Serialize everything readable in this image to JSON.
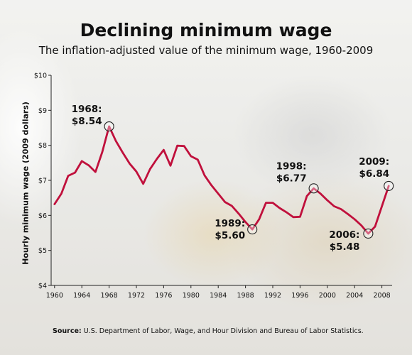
{
  "chart_data": {
    "type": "line",
    "title": "Declining minimum wage",
    "subtitle": "The inflation-adjusted value of the minimum wage, 1960-2009",
    "ylabel": "Hourly minimum wage (2009 dollars)",
    "xlabel": "",
    "xlim": [
      1959.5,
      2009.5
    ],
    "ylim": [
      4,
      10
    ],
    "x_ticks": [
      1960,
      1964,
      1968,
      1972,
      1976,
      1980,
      1984,
      1988,
      1992,
      1996,
      2000,
      2004,
      2008
    ],
    "x_tick_labels": [
      "1960",
      "1964",
      "1968",
      "1972",
      "1976",
      "1980",
      "1984",
      "1988",
      "1992",
      "1996",
      "2000",
      "2004",
      "2008"
    ],
    "y_ticks": [
      4,
      5,
      6,
      7,
      8,
      9,
      10
    ],
    "y_tick_labels": [
      "$4",
      "$5",
      "$6",
      "$7",
      "$8",
      "$9",
      "$10"
    ],
    "grid": false,
    "line_color": "#c0103c",
    "series": [
      {
        "name": "",
        "x": [
          1960,
          1961,
          1962,
          1963,
          1964,
          1965,
          1966,
          1967,
          1968,
          1969,
          1970,
          1971,
          1972,
          1973,
          1974,
          1975,
          1976,
          1977,
          1978,
          1979,
          1980,
          1981,
          1982,
          1983,
          1984,
          1985,
          1986,
          1987,
          1988,
          1989,
          1990,
          1991,
          1992,
          1993,
          1994,
          1995,
          1996,
          1997,
          1998,
          1999,
          2000,
          2001,
          2002,
          2003,
          2004,
          2005,
          2006,
          2007,
          2008,
          2009
        ],
        "y": [
          6.32,
          6.62,
          7.13,
          7.22,
          7.55,
          7.43,
          7.24,
          7.81,
          8.54,
          8.12,
          7.79,
          7.48,
          7.25,
          6.9,
          7.32,
          7.61,
          7.87,
          7.42,
          7.99,
          7.98,
          7.69,
          7.59,
          7.14,
          6.86,
          6.62,
          6.38,
          6.27,
          6.05,
          5.81,
          5.6,
          5.89,
          6.36,
          6.36,
          6.21,
          6.09,
          5.95,
          5.96,
          6.55,
          6.77,
          6.62,
          6.43,
          6.26,
          6.18,
          6.04,
          5.89,
          5.71,
          5.48,
          5.68,
          6.26,
          6.84
        ]
      }
    ],
    "annotations": [
      {
        "year": "1968:",
        "value": "$8.54",
        "x": 1968,
        "y": 8.54,
        "anchor": "end",
        "dx": -10,
        "dy": -20
      },
      {
        "year": "1989:",
        "value": "$5.60",
        "x": 1989,
        "y": 5.6,
        "anchor": "end",
        "dx": -10,
        "dy": -4
      },
      {
        "year": "1998:",
        "value": "$6.77",
        "x": 1998,
        "y": 6.77,
        "anchor": "end",
        "dx": -10,
        "dy": -27
      },
      {
        "year": "2006:",
        "value": "$5.48",
        "x": 2006,
        "y": 5.48,
        "anchor": "end",
        "dx": -12,
        "dy": 6
      },
      {
        "year": "2009:",
        "value": "$6.84",
        "x": 2009,
        "y": 6.84,
        "anchor": "end",
        "dx": 1,
        "dy": -30
      }
    ]
  },
  "source": {
    "label": "Source:",
    "text": " U.S. Department of Labor, Wage, and Hour Division and Bureau of Labor Statistics."
  }
}
